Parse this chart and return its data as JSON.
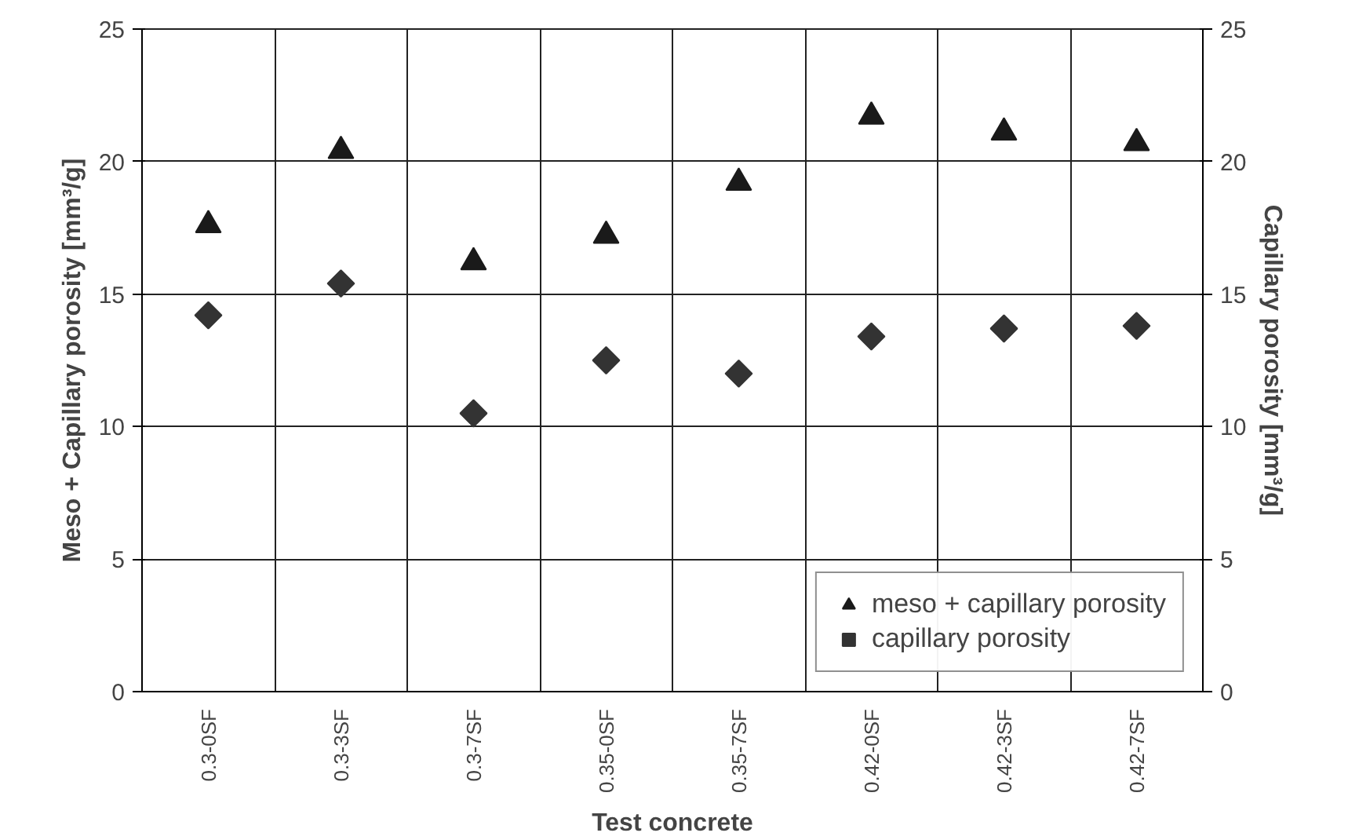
{
  "chart_data": {
    "type": "scatter",
    "categories": [
      "0.3-0SF",
      "0.3-3SF",
      "0.3-7SF",
      "0.35-0SF",
      "0.35-7SF",
      "0.42-0SF",
      "0.42-3SF",
      "0.42-7SF"
    ],
    "series": [
      {
        "name": "meso + capillary porosity",
        "color": "#1a1a1a",
        "marker": "triangle",
        "values": [
          17.6,
          20.4,
          16.2,
          17.2,
          19.2,
          21.7,
          21.1,
          20.7
        ]
      },
      {
        "name": "capillary porosity",
        "color": "#333333",
        "marker": "diamond",
        "values": [
          14.2,
          15.4,
          10.5,
          12.5,
          12.0,
          13.4,
          13.7,
          13.8
        ]
      }
    ],
    "xlabel": "Test concrete",
    "ylabel": "Meso + Capillary porosity [mm³/g]",
    "y2label": "Capillary porosity [mm³/g]",
    "ylim": [
      0,
      25
    ],
    "yticks": [
      0,
      5,
      10,
      15,
      20,
      25
    ],
    "y2lim": [
      0,
      25
    ],
    "y2ticks": [
      0,
      5,
      10,
      15,
      20,
      25
    ],
    "grid": true,
    "legend": "bottom right"
  }
}
